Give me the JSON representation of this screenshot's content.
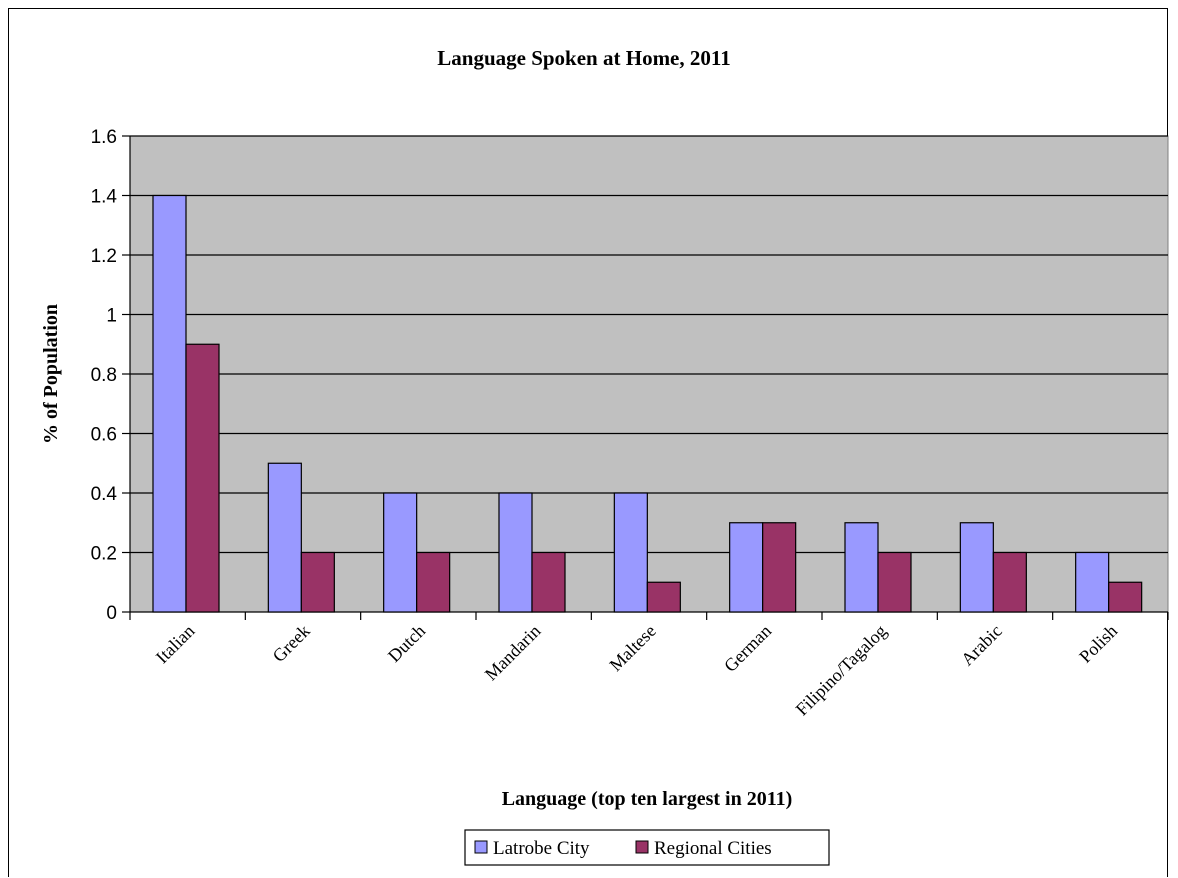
{
  "chart_data": {
    "type": "bar",
    "title": "Language Spoken at Home, 2011",
    "xlabel": "Language (top ten largest in 2011)",
    "ylabel": "% of Population",
    "ylim": [
      0,
      1.6
    ],
    "yticks": [
      "0",
      "0.2",
      "0.4",
      "0.6",
      "0.8",
      "1",
      "1.2",
      "1.4",
      "1.6"
    ],
    "categories": [
      "Italian",
      "Greek",
      "Dutch",
      "Mandarin",
      "Maltese",
      "German",
      "Filipino/Tagalog",
      "Arabic",
      "Polish"
    ],
    "series": [
      {
        "name": "Latrobe City",
        "color": "#9999ff",
        "values": [
          1.4,
          0.5,
          0.4,
          0.4,
          0.4,
          0.3,
          0.3,
          0.3,
          0.2
        ]
      },
      {
        "name": "Regional Cities",
        "color": "#993366",
        "values": [
          0.9,
          0.2,
          0.2,
          0.2,
          0.1,
          0.3,
          0.2,
          0.2,
          0.1
        ]
      }
    ],
    "plot_background": "#c0c0c0",
    "grid": true,
    "legend_position": "bottom"
  }
}
